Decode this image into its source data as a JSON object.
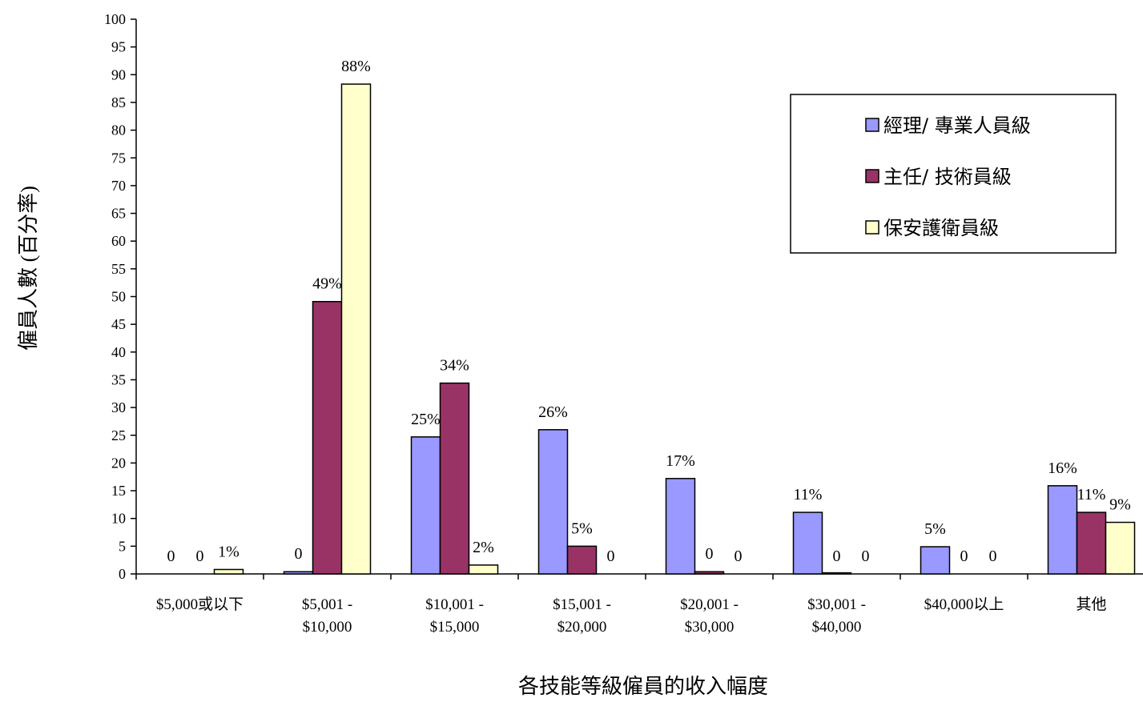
{
  "chart_data": {
    "type": "bar",
    "xlabel": "各技能等級僱員的收入幅度",
    "ylabel": "僱員人數 (百分率)",
    "ylim": [
      0,
      100
    ],
    "ytick_step": 5,
    "grid": false,
    "legend_position": "top-right",
    "categories": [
      [
        "$5,000或以下"
      ],
      [
        "$5,001 -",
        "$10,000"
      ],
      [
        "$10,001 -",
        "$15,000"
      ],
      [
        "$15,001 -",
        "$20,000"
      ],
      [
        "$20,001 -",
        "$30,000"
      ],
      [
        "$30,001 -",
        "$40,000"
      ],
      [
        "$40,000以上"
      ],
      [
        "其他"
      ]
    ],
    "series": [
      {
        "name": "經理/ 專業人員級",
        "color": "#9999ff",
        "values": [
          0,
          0.4,
          24.7,
          26.0,
          17.2,
          11.1,
          4.9,
          15.9
        ],
        "labels": [
          "0",
          "0",
          "25%",
          "26%",
          "17%",
          "11%",
          "5%",
          "16%"
        ]
      },
      {
        "name": "主任/ 技術員級",
        "color": "#993366",
        "values": [
          0,
          49.1,
          34.4,
          5.0,
          0.4,
          0.2,
          0,
          11.1
        ],
        "labels": [
          "0",
          "49%",
          "34%",
          "5%",
          "0",
          "0",
          "0",
          "11%"
        ]
      },
      {
        "name": "保安護衛員級",
        "color": "#ffffcc",
        "values": [
          0.8,
          88.3,
          1.6,
          0,
          0,
          0,
          0,
          9.3
        ],
        "labels": [
          "1%",
          "88%",
          "2%",
          "0",
          "0",
          "0",
          "0",
          "9%"
        ]
      }
    ]
  }
}
